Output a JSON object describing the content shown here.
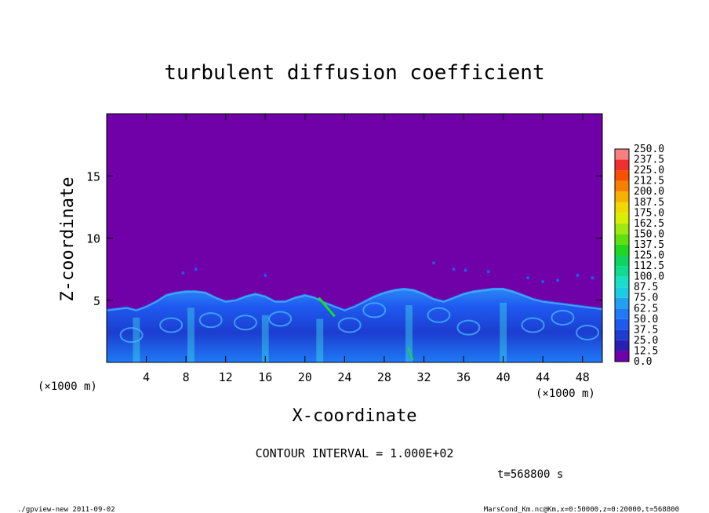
{
  "chart_data": {
    "type": "heatmap",
    "title": "turbulent diffusion coefficient",
    "xlabel": "X-coordinate",
    "ylabel": "Z-coordinate",
    "x_unit_left": "(×1000 m)",
    "x_unit_right": "(×1000 m)",
    "xlim": [
      0,
      50
    ],
    "ylim": [
      0,
      20
    ],
    "x_ticks": [
      4,
      8,
      12,
      16,
      20,
      24,
      28,
      32,
      36,
      40,
      44,
      48
    ],
    "y_ticks": [
      5,
      10,
      15
    ],
    "colorbar": {
      "levels": [
        "0.0",
        "12.5",
        "25.0",
        "37.5",
        "50.0",
        "62.5",
        "75.0",
        "87.5",
        "100.0",
        "112.5",
        "125.0",
        "137.5",
        "150.0",
        "162.5",
        "175.0",
        "187.5",
        "200.0",
        "212.5",
        "225.0",
        "237.5",
        "250.0"
      ],
      "colors": [
        "#7000a8",
        "#2a1fb0",
        "#1c3dd0",
        "#1f5af0",
        "#1f7af5",
        "#22a0f2",
        "#1ccce0",
        "#18e0c8",
        "#10dc90",
        "#10d460",
        "#20d820",
        "#60e010",
        "#a0e810",
        "#d8f000",
        "#f0d800",
        "#f8b000",
        "#f88000",
        "#f85000",
        "#f03030",
        "#f88080"
      ]
    },
    "background_color": "#7000a8",
    "contour_interval": "CONTOUR INTERVAL = 1.000E+02",
    "time_label": "t=568800 s",
    "boundary_layer_top_km": [
      [
        0,
        4.3
      ],
      [
        1,
        4.4
      ],
      [
        2,
        4.5
      ],
      [
        3,
        4.3
      ],
      [
        4,
        4.6
      ],
      [
        5,
        5.0
      ],
      [
        6,
        5.5
      ],
      [
        7,
        5.7
      ],
      [
        8,
        5.8
      ],
      [
        9,
        5.8
      ],
      [
        10,
        5.7
      ],
      [
        11,
        5.3
      ],
      [
        12,
        5.0
      ],
      [
        13,
        5.1
      ],
      [
        14,
        5.4
      ],
      [
        15,
        5.6
      ],
      [
        16,
        5.4
      ],
      [
        17,
        5.0
      ],
      [
        18,
        5.0
      ],
      [
        19,
        5.3
      ],
      [
        20,
        5.5
      ],
      [
        21,
        5.3
      ],
      [
        22,
        4.9
      ],
      [
        23,
        4.6
      ],
      [
        24,
        4.3
      ],
      [
        25,
        4.6
      ],
      [
        26,
        5.0
      ],
      [
        27,
        5.4
      ],
      [
        28,
        5.7
      ],
      [
        29,
        5.9
      ],
      [
        30,
        6.0
      ],
      [
        31,
        5.9
      ],
      [
        32,
        5.6
      ],
      [
        33,
        5.2
      ],
      [
        34,
        5.0
      ],
      [
        35,
        5.3
      ],
      [
        36,
        5.6
      ],
      [
        37,
        5.8
      ],
      [
        38,
        5.9
      ],
      [
        39,
        6.0
      ],
      [
        40,
        6.0
      ],
      [
        41,
        5.8
      ],
      [
        42,
        5.5
      ],
      [
        43,
        5.2
      ],
      [
        44,
        5.0
      ],
      [
        45,
        4.9
      ],
      [
        46,
        4.8
      ],
      [
        47,
        4.7
      ],
      [
        48,
        4.6
      ],
      [
        49,
        4.5
      ],
      [
        50,
        4.4
      ]
    ]
  },
  "footer": {
    "left": "./gpview-new  2011-09-02",
    "right": "MarsCond_Km.nc@Km,x=0:50000,z=0:20000,t=568800"
  }
}
